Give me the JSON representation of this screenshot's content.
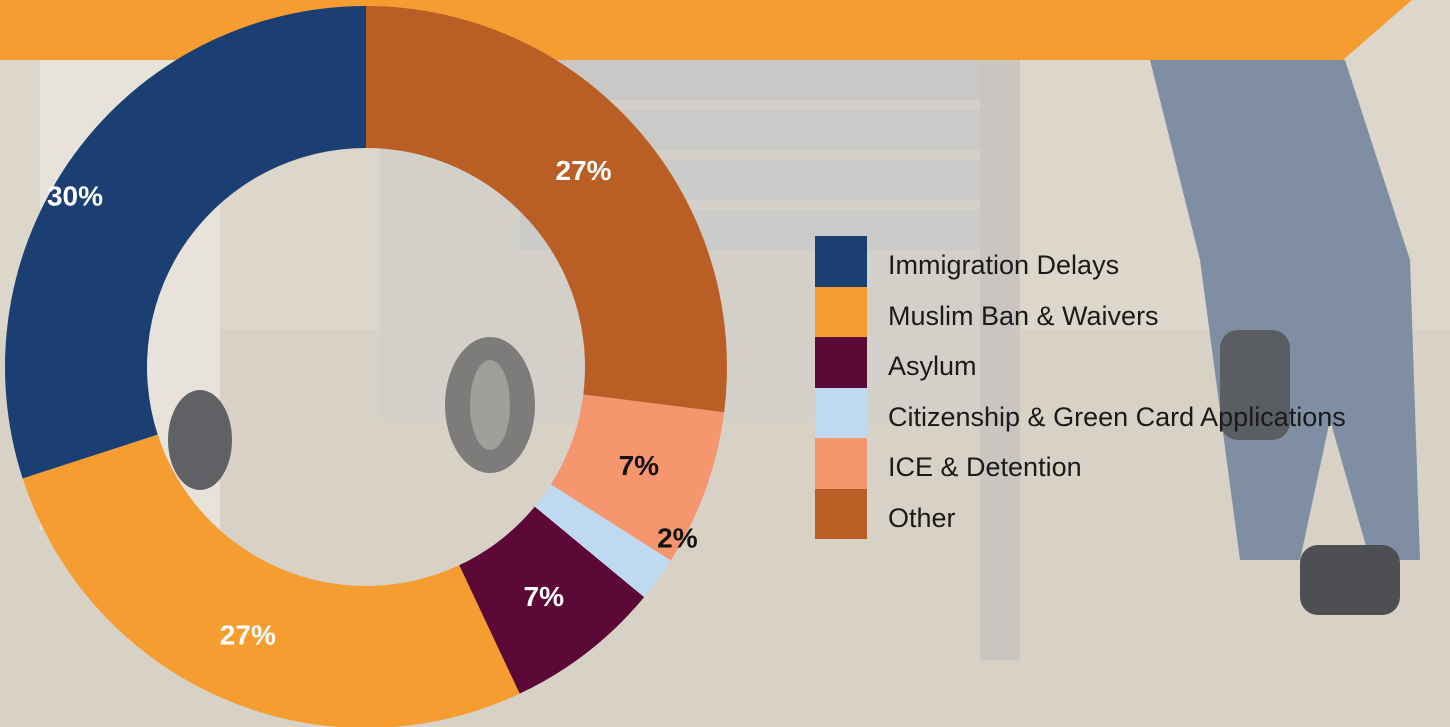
{
  "chart_data": {
    "type": "pie",
    "style": "donut",
    "title": "",
    "start_angle_deg": 0,
    "direction": "counterclockwise",
    "slices": [
      {
        "label": "Immigration Delays",
        "value": 30,
        "display": "30%",
        "color": "#1b3f73",
        "label_color": "#ffffff"
      },
      {
        "label": "Muslim Ban & Waivers",
        "value": 27,
        "display": "27%",
        "color": "#f59d31",
        "label_color": "#ffffff"
      },
      {
        "label": "Asylum",
        "value": 7,
        "display": "7%",
        "color": "#5c0837",
        "label_color": "#ffffff"
      },
      {
        "label": "Citizenship & Green Card Applications",
        "value": 2,
        "display": "2%",
        "color": "#bfdaf0",
        "label_color": "#111111"
      },
      {
        "label": "ICE & Detention",
        "value": 7,
        "display": "7%",
        "color": "#f5966e",
        "label_color": "#111111"
      },
      {
        "label": "Other",
        "value": 27,
        "display": "27%",
        "color": "#b95f26",
        "label_color": "#ffffff"
      }
    ],
    "legend": {
      "position": "right"
    }
  },
  "colors": {
    "banner": "#f59d31",
    "background": "#d9d2c6"
  }
}
